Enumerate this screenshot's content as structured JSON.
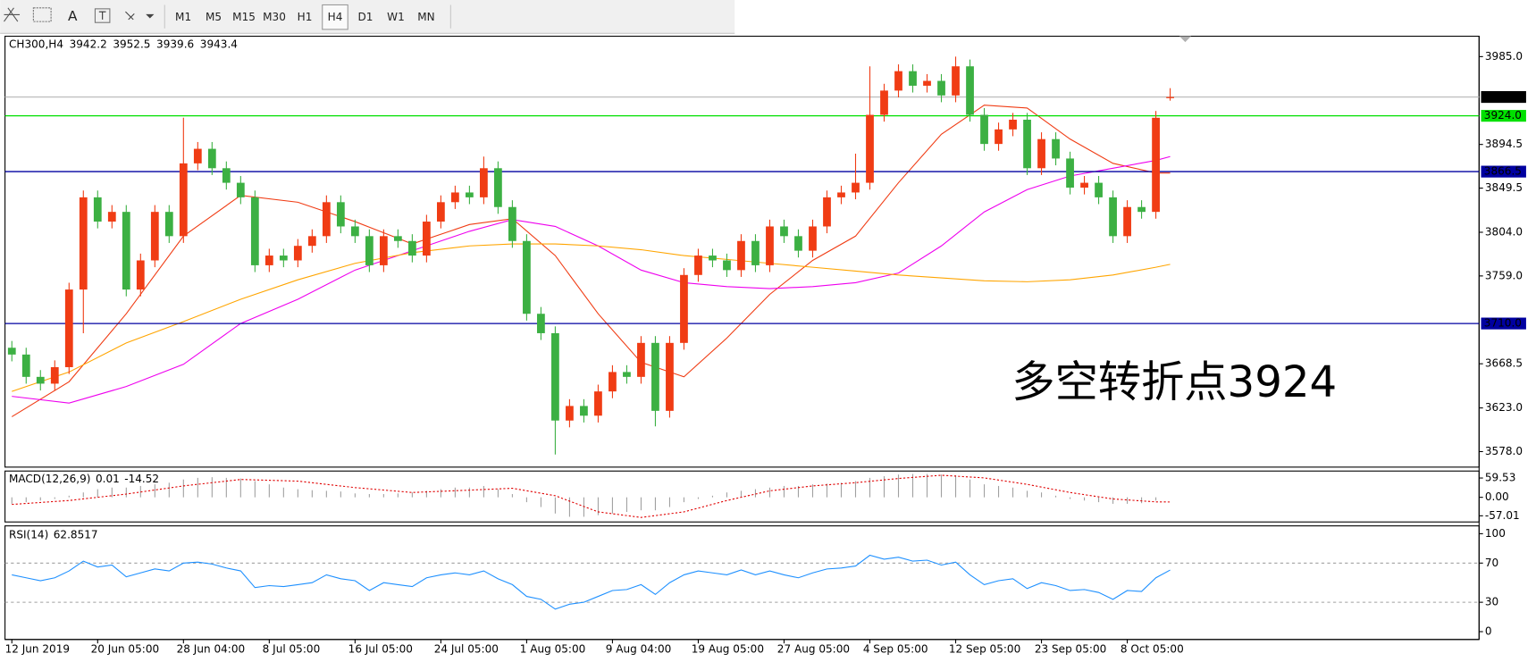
{
  "toolbar": {
    "text_tool": "A",
    "timeframes": [
      "M1",
      "M5",
      "M15",
      "M30",
      "H1",
      "H4",
      "D1",
      "W1",
      "MN"
    ],
    "active": "H4"
  },
  "chart_data": [
    {
      "type": "candlestick",
      "title": "CH300,H4",
      "quote": [
        3942.2,
        3952.5,
        3939.6,
        3943.4
      ],
      "up_color": "#f03c14",
      "down_color": "#3cb043",
      "categories": [
        "12 Jun 2019",
        null,
        null,
        null,
        null,
        null,
        "20 Jun 05:00",
        null,
        null,
        null,
        null,
        null,
        "28 Jun 04:00",
        null,
        null,
        null,
        null,
        null,
        "8 Jul 05:00",
        null,
        null,
        null,
        null,
        null,
        "16 Jul 05:00",
        null,
        null,
        null,
        null,
        null,
        "24 Jul 05:00",
        null,
        null,
        null,
        null,
        null,
        "1 Aug 05:00",
        null,
        null,
        null,
        null,
        null,
        "9 Aug 04:00",
        null,
        null,
        null,
        null,
        null,
        "19 Aug 05:00",
        null,
        null,
        null,
        null,
        null,
        "27 Aug 05:00",
        null,
        null,
        null,
        null,
        null,
        "4 Sep 05:00",
        null,
        null,
        null,
        null,
        null,
        "12 Sep 05:00",
        null,
        null,
        null,
        null,
        null,
        "23 Sep 05:00",
        null,
        null,
        null,
        null,
        null,
        "8 Oct 05:00",
        null,
        null,
        null
      ],
      "open": [
        3685,
        3678,
        3655,
        3648,
        3665,
        3745,
        3840,
        3815,
        3825,
        3745,
        3775,
        3825,
        3800,
        3875,
        3890,
        3870,
        3855,
        3840,
        3770,
        3780,
        3775,
        3790,
        3800,
        3835,
        3810,
        3800,
        3770,
        3800,
        3795,
        3780,
        3815,
        3835,
        3845,
        3840,
        3870,
        3830,
        3795,
        3720,
        3700,
        3610,
        3625,
        3615,
        3640,
        3660,
        3655,
        3690,
        3620,
        3690,
        3760,
        3780,
        3775,
        3765,
        3795,
        3770,
        3810,
        3800,
        3785,
        3810,
        3840,
        3845,
        3855,
        3925,
        3950,
        3970,
        3955,
        3960,
        3945,
        3975,
        3925,
        3895,
        3910,
        3920,
        3870,
        3900,
        3880,
        3850,
        3855,
        3840,
        3800,
        3830,
        3825,
        3942.2
      ],
      "high": [
        3692,
        3685,
        3662,
        3672,
        3752,
        3847,
        3847,
        3832,
        3832,
        3782,
        3832,
        3832,
        3922,
        3897,
        3897,
        3877,
        3862,
        3847,
        3787,
        3787,
        3797,
        3807,
        3842,
        3842,
        3817,
        3807,
        3807,
        3807,
        3802,
        3822,
        3842,
        3852,
        3852,
        3882,
        3877,
        3837,
        3802,
        3727,
        3707,
        3632,
        3632,
        3647,
        3667,
        3667,
        3697,
        3697,
        3697,
        3767,
        3787,
        3787,
        3782,
        3802,
        3802,
        3817,
        3817,
        3807,
        3817,
        3847,
        3852,
        3885,
        3975,
        3957,
        3977,
        3977,
        3967,
        3967,
        3985,
        3982,
        3932,
        3917,
        3927,
        3927,
        3907,
        3907,
        3887,
        3862,
        3862,
        3847,
        3837,
        3837,
        3929,
        3952.5
      ],
      "low": [
        3671,
        3648,
        3641,
        3641,
        3658,
        3700,
        3808,
        3808,
        3738,
        3738,
        3768,
        3793,
        3793,
        3868,
        3863,
        3848,
        3833,
        3763,
        3763,
        3768,
        3768,
        3783,
        3793,
        3803,
        3793,
        3763,
        3763,
        3788,
        3773,
        3773,
        3808,
        3828,
        3833,
        3833,
        3823,
        3788,
        3713,
        3693,
        3575,
        3603,
        3608,
        3608,
        3633,
        3648,
        3648,
        3604,
        3613,
        3683,
        3753,
        3768,
        3758,
        3758,
        3763,
        3763,
        3793,
        3778,
        3778,
        3803,
        3833,
        3838,
        3848,
        3918,
        3943,
        3948,
        3948,
        3938,
        3938,
        3918,
        3888,
        3888,
        3903,
        3863,
        3863,
        3873,
        3843,
        3843,
        3833,
        3793,
        3793,
        3818,
        3818,
        3939.6
      ],
      "close": [
        3678,
        3655,
        3648,
        3665,
        3745,
        3840,
        3815,
        3825,
        3745,
        3775,
        3825,
        3800,
        3875,
        3890,
        3870,
        3855,
        3840,
        3770,
        3780,
        3775,
        3790,
        3800,
        3835,
        3810,
        3800,
        3770,
        3800,
        3795,
        3780,
        3815,
        3835,
        3845,
        3840,
        3870,
        3830,
        3795,
        3720,
        3700,
        3610,
        3625,
        3615,
        3640,
        3660,
        3655,
        3690,
        3620,
        3690,
        3760,
        3780,
        3775,
        3765,
        3795,
        3770,
        3810,
        3800,
        3785,
        3810,
        3840,
        3845,
        3855,
        3925,
        3950,
        3970,
        3955,
        3960,
        3945,
        3975,
        3925,
        3895,
        3910,
        3920,
        3870,
        3900,
        3880,
        3850,
        3855,
        3840,
        3800,
        3830,
        3825,
        3922,
        3943.4
      ],
      "lines": [
        {
          "color": "#f03c14",
          "x": [
            0,
            4,
            8,
            12,
            16,
            20,
            24,
            28,
            32,
            35,
            38,
            41,
            44,
            47,
            50,
            53,
            56,
            59,
            62,
            65,
            68,
            71,
            74,
            77,
            80,
            81
          ],
          "values": [
            3614,
            3650,
            3720,
            3800,
            3842,
            3835,
            3815,
            3792,
            3812,
            3818,
            3780,
            3720,
            3670,
            3655,
            3695,
            3740,
            3775,
            3800,
            3855,
            3905,
            3935,
            3932,
            3900,
            3875,
            3865,
            3865
          ]
        },
        {
          "color": "#ee00ee",
          "x": [
            0,
            4,
            8,
            12,
            16,
            20,
            24,
            28,
            32,
            35,
            38,
            41,
            44,
            47,
            50,
            53,
            56,
            59,
            62,
            65,
            68,
            71,
            74,
            77,
            80,
            81
          ],
          "values": [
            3635,
            3628,
            3645,
            3668,
            3710,
            3735,
            3765,
            3785,
            3805,
            3817,
            3810,
            3790,
            3765,
            3752,
            3748,
            3746,
            3748,
            3752,
            3762,
            3790,
            3825,
            3848,
            3862,
            3870,
            3878,
            3882
          ]
        },
        {
          "color": "#ffa500",
          "x": [
            0,
            4,
            8,
            12,
            16,
            20,
            24,
            28,
            32,
            35,
            38,
            41,
            44,
            47,
            50,
            53,
            56,
            59,
            62,
            65,
            68,
            71,
            74,
            77,
            80,
            81
          ],
          "values": [
            3640,
            3660,
            3690,
            3712,
            3735,
            3755,
            3772,
            3783,
            3790,
            3792,
            3792,
            3790,
            3786,
            3780,
            3776,
            3772,
            3768,
            3764,
            3760,
            3757,
            3754,
            3753,
            3755,
            3760,
            3768,
            3771
          ]
        }
      ],
      "hlines": [
        {
          "value": 3943.4,
          "color": "#c0c0c0",
          "label_color": "#000000"
        },
        {
          "value": 3924.0,
          "label": "3924.0",
          "color": "#00e000",
          "label_color": "#00e000"
        },
        {
          "value": 3866.5,
          "label": "3866.5",
          "color": "#0000a0",
          "label_color": "#0000a0"
        },
        {
          "value": 3710.0,
          "label": "3710.0",
          "color": "#0000a0",
          "label_color": "#0000a0"
        }
      ],
      "annotation": {
        "text": "多空转折点3924",
        "color": "#ff1a1a"
      },
      "ylim": [
        3562,
        4006
      ],
      "yticks": [
        {
          "value": 3985,
          "label": "3985.0"
        },
        {
          "value": 3894.5,
          "label": "3894.5"
        },
        {
          "value": 3849.5,
          "label": "3849.5"
        },
        {
          "value": 3804,
          "label": "3804.0"
        },
        {
          "value": 3759,
          "label": "3759.0"
        },
        {
          "value": 3668.5,
          "label": "3668.5"
        },
        {
          "value": 3623,
          "label": "3623.0"
        },
        {
          "value": 3578,
          "label": "3578.0"
        }
      ]
    },
    {
      "type": "macd",
      "title": "MACD(12,26,9)",
      "readout": [
        0.01,
        -14.52
      ],
      "color": "#a0a0a0",
      "values": [
        -20,
        -15,
        -10,
        -5,
        5,
        15,
        25,
        30,
        30,
        35,
        40,
        45,
        55,
        60,
        62,
        60,
        58,
        50,
        40,
        30,
        25,
        22,
        20,
        18,
        12,
        10,
        10,
        12,
        15,
        20,
        25,
        30,
        30,
        35,
        25,
        10,
        -15,
        -30,
        -50,
        -60,
        -60,
        -55,
        -50,
        -45,
        -40,
        -40,
        -30,
        -15,
        -5,
        5,
        15,
        20,
        25,
        30,
        35,
        35,
        40,
        42,
        45,
        50,
        60,
        65,
        70,
        72,
        72,
        70,
        68,
        55,
        40,
        35,
        30,
        20,
        15,
        5,
        -5,
        -10,
        -15,
        -20,
        -20,
        -18,
        -10,
        0.01
      ],
      "signal": {
        "color": "#e00000",
        "x": [
          0,
          4,
          8,
          12,
          16,
          20,
          24,
          28,
          32,
          35,
          38,
          41,
          44,
          47,
          50,
          53,
          56,
          59,
          62,
          65,
          68,
          71,
          74,
          77,
          80,
          81
        ],
        "values": [
          -22,
          -10,
          10,
          35,
          55,
          50,
          30,
          15,
          22,
          28,
          5,
          -45,
          -62,
          -45,
          -10,
          20,
          35,
          45,
          58,
          68,
          60,
          40,
          15,
          -5,
          -14,
          -14.52
        ]
      },
      "ylim": [
        -76,
        81
      ],
      "yticks": [
        59.53,
        {
          "value": 0,
          "label": "0.00"
        },
        -57.01
      ]
    },
    {
      "type": "line",
      "title": "RSI(14)",
      "readout": 62.8517,
      "color": "#1e90ff",
      "values": [
        58,
        55,
        52,
        55,
        62,
        72,
        66,
        68,
        56,
        60,
        64,
        62,
        70,
        71,
        69,
        65,
        62,
        45,
        47,
        46,
        48,
        50,
        58,
        54,
        52,
        42,
        50,
        48,
        46,
        55,
        58,
        60,
        58,
        62,
        54,
        48,
        36,
        33,
        23,
        28,
        30,
        36,
        42,
        43,
        48,
        38,
        50,
        58,
        62,
        60,
        58,
        63,
        58,
        62,
        58,
        55,
        60,
        64,
        65,
        67,
        78,
        74,
        76,
        72,
        73,
        68,
        71,
        58,
        48,
        52,
        54,
        44,
        50,
        47,
        42,
        43,
        40,
        33,
        42,
        41,
        55,
        62.8517
      ],
      "levels": [
        70,
        30
      ],
      "ylim": [
        -8,
        108
      ],
      "yticks": [
        100,
        70,
        30,
        0
      ]
    }
  ]
}
